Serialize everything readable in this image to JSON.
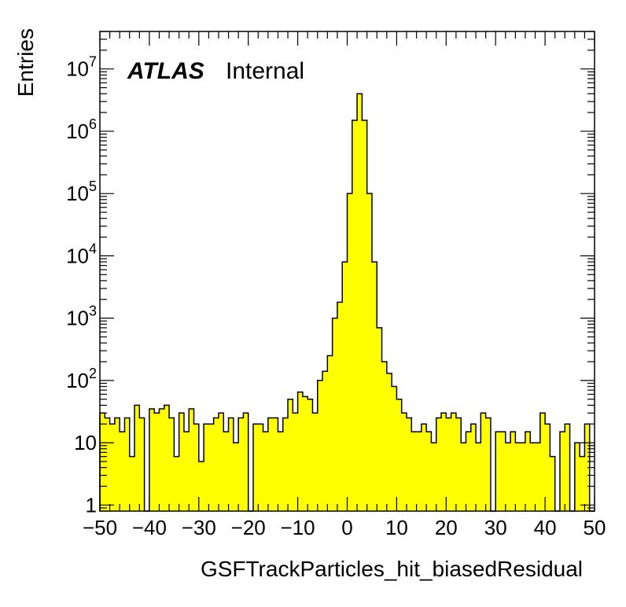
{
  "chart_data": {
    "type": "bar",
    "xlabel": "GSFTrackParticles_hit_biasedResidual",
    "ylabel": "Entries",
    "label_bold": "ATLAS",
    "label_normal": "Internal",
    "xlim": [
      -50,
      50
    ],
    "ylim": [
      0.8,
      40000000
    ],
    "y_scale": "log",
    "fill_color": "#ffff00",
    "line_color": "#000000",
    "x_ticks": [
      -50,
      -40,
      -30,
      -20,
      -10,
      0,
      10,
      20,
      30,
      40,
      50
    ],
    "x_tick_labels": [
      "−50",
      "−40",
      "−30",
      "−20",
      "−10",
      "0",
      "10",
      "20",
      "30",
      "40",
      "50"
    ],
    "y_ticks": [
      {
        "value": 1,
        "base": "1",
        "exp": ""
      },
      {
        "value": 10,
        "base": "10",
        "exp": ""
      },
      {
        "value": 100,
        "base": "10",
        "exp": "2"
      },
      {
        "value": 1000,
        "base": "10",
        "exp": "3"
      },
      {
        "value": 10000,
        "base": "10",
        "exp": "4"
      },
      {
        "value": 100000,
        "base": "10",
        "exp": "5"
      },
      {
        "value": 1000000,
        "base": "10",
        "exp": "6"
      },
      {
        "value": 10000000,
        "base": "10",
        "exp": "7"
      }
    ],
    "bin_width": 1,
    "bin_edges_start": -50,
    "values": [
      30,
      25,
      20,
      25,
      15,
      25,
      6,
      40,
      25,
      0,
      35,
      30,
      35,
      40,
      25,
      6,
      30,
      15,
      35,
      20,
      5,
      20,
      20,
      25,
      30,
      15,
      25,
      10,
      25,
      30,
      0,
      20,
      20,
      15,
      25,
      25,
      15,
      25,
      50,
      30,
      65,
      55,
      50,
      30,
      100,
      140,
      250,
      1000,
      1800,
      8000,
      100000,
      1500000,
      4000000,
      1500000,
      100000,
      8000,
      700,
      200,
      130,
      80,
      50,
      30,
      25,
      15,
      15,
      20,
      15,
      10,
      25,
      30,
      25,
      30,
      25,
      10,
      15,
      20,
      10,
      30,
      25,
      0,
      15,
      15,
      10,
      15,
      10,
      10,
      15,
      10,
      10,
      30,
      20,
      6,
      0,
      15,
      20,
      0,
      10,
      6,
      20,
      0
    ]
  }
}
